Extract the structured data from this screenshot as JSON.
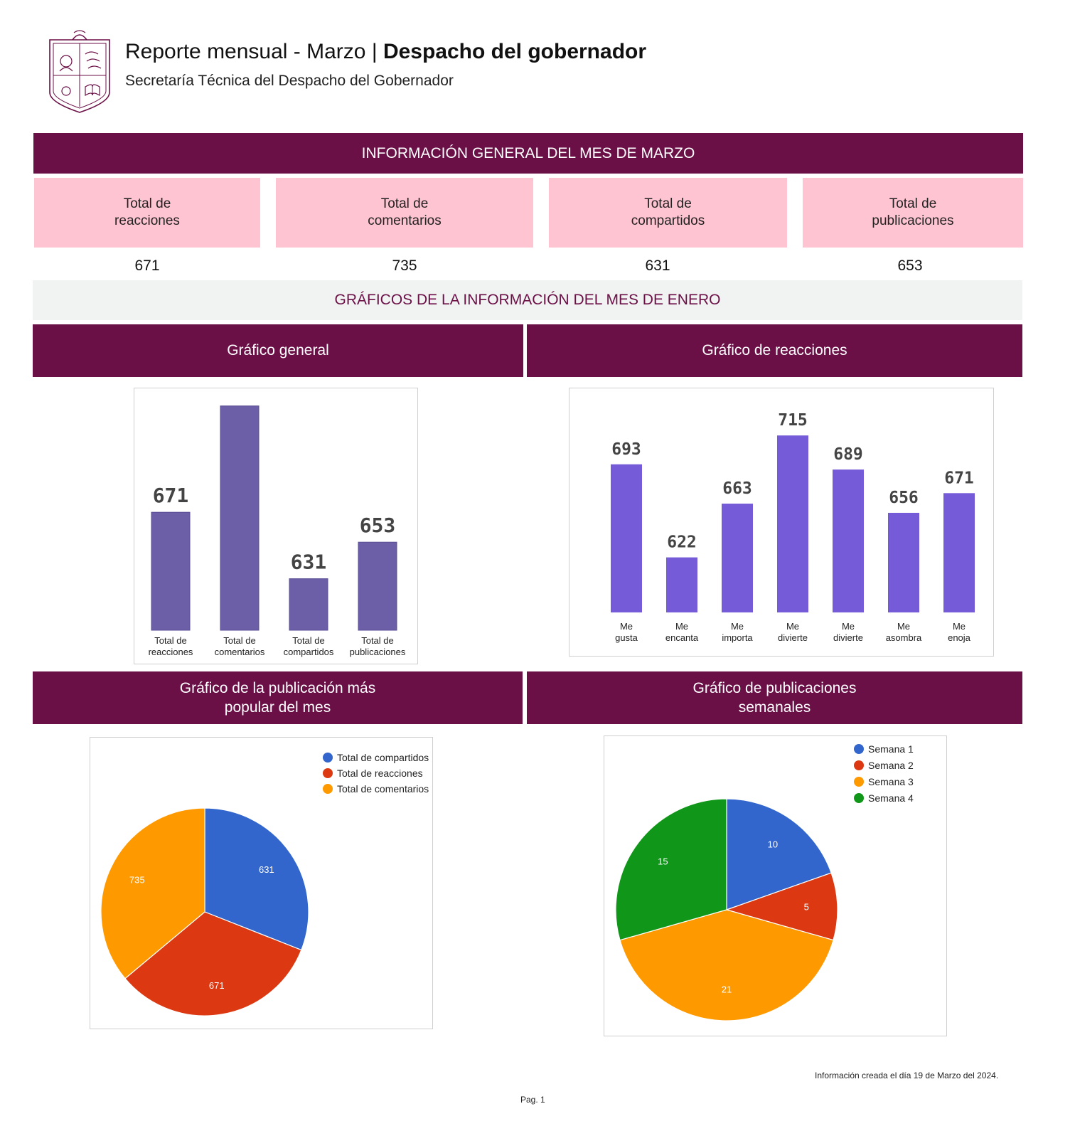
{
  "header": {
    "title_main": "Reporte mensual - Marzo",
    "title_separator": "|",
    "title_strong": "Despacho del gobernador",
    "subtitle": "Secretaría Técnica del Despacho del Gobernador",
    "logo_icon": "state-coat-of-arms-icon"
  },
  "info_band": "INFORMACIÓN GENERAL DEL MES DE MARZO",
  "kpis": [
    {
      "label": "Total de reacciones",
      "value": "671"
    },
    {
      "label": "Total de comentarios",
      "value": "735"
    },
    {
      "label": "Total de compartidos",
      "value": "631"
    },
    {
      "label": "Total de publicaciones",
      "value": "653"
    }
  ],
  "charts_band": "GRÁFICOS DE LA INFORMACIÓN DEL MES DE ENERO",
  "section_titles": {
    "general": "Gráfico general",
    "reactions": "Gráfico de reacciones",
    "popular_line1": "Gráfico de la publicación más",
    "popular_line2": "popular del mes",
    "weekly_line1": "Gráfico de publicaciones",
    "weekly_line2": "semanales"
  },
  "colors": {
    "maroon": "#6b0f47",
    "pink": "#ffc4d2",
    "general_bar": "#6d5fa7",
    "reactions_bar": "#765bd8",
    "blue": "#3366cc",
    "red": "#dc3912",
    "orange": "#ff9900",
    "green": "#109618"
  },
  "chart_data": [
    {
      "type": "bar",
      "id": "general",
      "categories": [
        [
          "Total de",
          "reacciones"
        ],
        [
          "Total de",
          "comentarios"
        ],
        [
          "Total de",
          "compartidos"
        ],
        [
          "Total de",
          "publicaciones"
        ]
      ],
      "values": [
        671,
        735,
        631,
        653
      ],
      "data_labels": [
        "671",
        "",
        "631",
        "653"
      ],
      "ylim": [
        600,
        740
      ]
    },
    {
      "type": "bar",
      "id": "reactions",
      "categories": [
        [
          "Me",
          "gusta"
        ],
        [
          "Me",
          "encanta"
        ],
        [
          "Me",
          "importa"
        ],
        [
          "Me",
          "divierte"
        ],
        [
          "Me",
          "divierte"
        ],
        [
          "Me",
          "asombra"
        ],
        [
          "Me",
          "enoja"
        ]
      ],
      "values": [
        693,
        622,
        663,
        715,
        689,
        656,
        671
      ],
      "data_labels": [
        "693",
        "622",
        "663",
        "715",
        "689",
        "656",
        "671"
      ],
      "ylim": [
        580,
        720
      ]
    },
    {
      "type": "pie",
      "id": "popular",
      "series": [
        {
          "name": "Total de compartidos",
          "value": 631,
          "label": "631",
          "color": "#3366cc"
        },
        {
          "name": "Total de reacciones",
          "value": 671,
          "label": "671",
          "color": "#dc3912"
        },
        {
          "name": "Total de comentarios",
          "value": 735,
          "label": "735",
          "color": "#ff9900"
        }
      ],
      "legend": "top-right"
    },
    {
      "type": "pie",
      "id": "weekly",
      "series": [
        {
          "name": "Semana 1",
          "value": 10,
          "label": "10",
          "color": "#3366cc"
        },
        {
          "name": "Semana 2",
          "value": 5,
          "label": "5",
          "color": "#dc3912"
        },
        {
          "name": "Semana 3",
          "value": 21,
          "label": "21",
          "color": "#ff9900"
        },
        {
          "name": "Semana 4",
          "value": 15,
          "label": "15",
          "color": "#109618"
        }
      ],
      "legend": "top-right"
    }
  ],
  "footer": {
    "note": "Información creada el día 19 de Marzo del 2024.",
    "page": "Pag. 1"
  }
}
